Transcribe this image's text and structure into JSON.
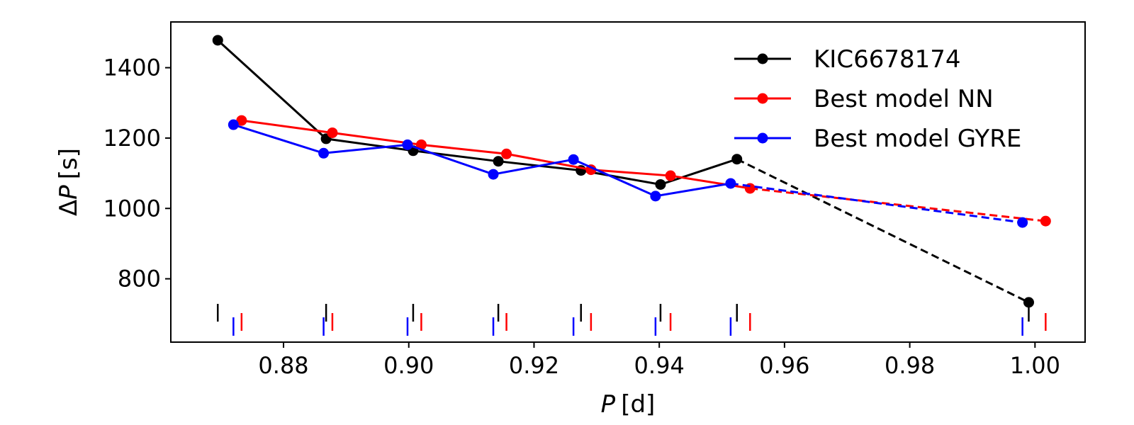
{
  "chart_data": {
    "type": "line",
    "xlabel": "P [d]",
    "ylabel": "ΔP [s]",
    "xlim": [
      0.862,
      1.008
    ],
    "ylim": [
      620,
      1530
    ],
    "xticks": [
      0.88,
      0.9,
      0.92,
      0.94,
      0.96,
      0.98,
      1.0
    ],
    "xtick_labels": [
      "0.88",
      "0.90",
      "0.92",
      "0.94",
      "0.96",
      "0.98",
      "1.00"
    ],
    "yticks": [
      800,
      1000,
      1200,
      1400
    ],
    "ytick_labels": [
      "800",
      "1000",
      "1200",
      "1400"
    ],
    "legend_position": "top-right",
    "series": [
      {
        "name": "KIC6678174",
        "color": "#000000",
        "x": [
          0.8695,
          0.8868,
          0.9007,
          0.9143,
          0.9275,
          0.9402,
          0.9524,
          0.999
        ],
        "y": [
          1478,
          1198,
          1164,
          1134,
          1108,
          1068,
          1140,
          733
        ],
        "dashed_from_index": 6,
        "tick_marks": [
          0.8695,
          0.8868,
          0.9007,
          0.9143,
          0.9275,
          0.9402,
          0.9524,
          0.999
        ],
        "has_error_bars": true
      },
      {
        "name": "Best model NN",
        "color": "#ff0000",
        "x": [
          0.8733,
          0.8878,
          0.902,
          0.9156,
          0.9291,
          0.9418,
          0.9545,
          1.0017
        ],
        "y": [
          1250,
          1215,
          1181,
          1155,
          1110,
          1093,
          1057,
          964
        ],
        "dashed_from_index": 6,
        "tick_marks": [
          0.8733,
          0.8878,
          0.902,
          0.9156,
          0.9291,
          0.9418,
          0.9545,
          1.0017
        ],
        "has_error_bars": false
      },
      {
        "name": "Best model GYRE",
        "color": "#0000ff",
        "x": [
          0.872,
          0.8864,
          0.8998,
          0.9135,
          0.9263,
          0.9394,
          0.9514,
          0.998
        ],
        "y": [
          1238,
          1157,
          1181,
          1097,
          1139,
          1035,
          1071,
          960
        ],
        "dashed_from_index": 6,
        "tick_marks": [
          0.872,
          0.8864,
          0.8998,
          0.9135,
          0.9263,
          0.9394,
          0.9514,
          0.998
        ],
        "has_error_bars": false
      }
    ]
  }
}
